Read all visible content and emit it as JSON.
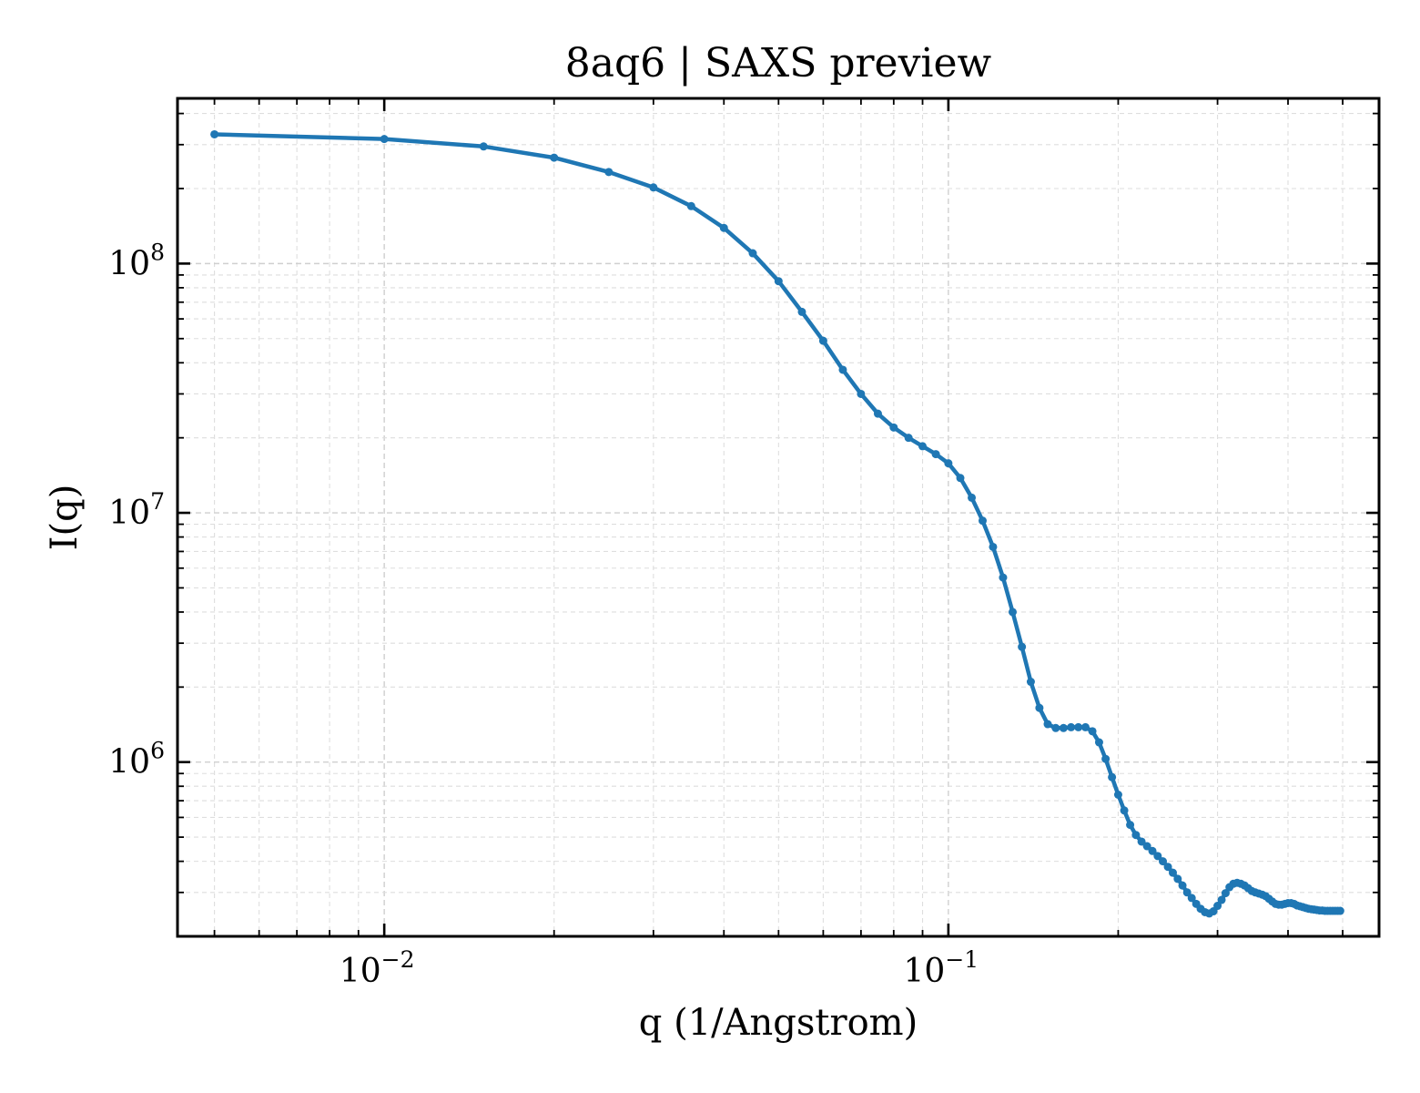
{
  "chart_data": {
    "type": "line",
    "title": "8aq6 | SAXS preview",
    "xlabel": "q (1/Angstrom)",
    "ylabel": "I(q)",
    "xscale": "log",
    "yscale": "log",
    "xlim": [
      0.0043,
      0.58
    ],
    "ylim": [
      200000,
      460000000
    ],
    "grid": true,
    "legend": "none",
    "colors": {
      "series": "#1f77b4",
      "grid": "#cfcfcf",
      "frame": "#000000"
    },
    "x_ticks": [
      {
        "value": 0.01,
        "base": "10",
        "exp": "−2"
      },
      {
        "value": 0.1,
        "base": "10",
        "exp": "−1"
      }
    ],
    "y_ticks": [
      {
        "value": 1000000,
        "base": "10",
        "exp": "6"
      },
      {
        "value": 10000000,
        "base": "10",
        "exp": "7"
      },
      {
        "value": 100000000,
        "base": "10",
        "exp": "8"
      }
    ],
    "series": [
      {
        "marker": "circle",
        "x": [
          0.005,
          0.01,
          0.015,
          0.02,
          0.025,
          0.03,
          0.035,
          0.04,
          0.045,
          0.05,
          0.055,
          0.06,
          0.065,
          0.07,
          0.075,
          0.08,
          0.085,
          0.09,
          0.095,
          0.1,
          0.105,
          0.11,
          0.115,
          0.12,
          0.125,
          0.13,
          0.135,
          0.14,
          0.145,
          0.15,
          0.155,
          0.16,
          0.165,
          0.17,
          0.175,
          0.18,
          0.185,
          0.19,
          0.195,
          0.2,
          0.205,
          0.21,
          0.215,
          0.22,
          0.225,
          0.23,
          0.235,
          0.24,
          0.245,
          0.25,
          0.255,
          0.26,
          0.265,
          0.27,
          0.275,
          0.28,
          0.285,
          0.29,
          0.295,
          0.3,
          0.305,
          0.31,
          0.315,
          0.32,
          0.325,
          0.33,
          0.335,
          0.34,
          0.345,
          0.35,
          0.355,
          0.36,
          0.365,
          0.37,
          0.375,
          0.38,
          0.385,
          0.39,
          0.395,
          0.4,
          0.405,
          0.41,
          0.415,
          0.42,
          0.425,
          0.43,
          0.435,
          0.44,
          0.445,
          0.45,
          0.455,
          0.46,
          0.465,
          0.47,
          0.475,
          0.48,
          0.485,
          0.49,
          0.495
        ],
        "y": [
          330000000,
          316000000,
          295000000,
          266000000,
          233000000,
          202000000,
          170000000,
          139000000,
          110000000,
          85000000,
          64000000,
          49000000,
          37500000,
          30000000,
          25000000,
          22000000,
          20000000,
          18500000,
          17200000,
          15800000,
          13800000,
          11500000,
          9300000,
          7300000,
          5500000,
          4000000,
          2900000,
          2100000,
          1650000,
          1420000,
          1370000,
          1370000,
          1380000,
          1380000,
          1380000,
          1330000,
          1200000,
          1030000,
          870000,
          740000,
          640000,
          560000,
          510000,
          480000,
          460000,
          440000,
          420000,
          400000,
          380000,
          360000,
          340000,
          320000,
          300000,
          285000,
          270000,
          258000,
          250000,
          247000,
          252000,
          265000,
          280000,
          298000,
          315000,
          325000,
          328000,
          325000,
          320000,
          312000,
          304000,
          300000,
          297000,
          294000,
          290000,
          283000,
          276000,
          270000,
          268000,
          268000,
          270000,
          272000,
          272000,
          270000,
          266000,
          264000,
          262000,
          260000,
          258000,
          257000,
          256000,
          255000,
          254000,
          254000,
          253000,
          253000,
          253000,
          253000,
          253000,
          253000,
          253000
        ]
      }
    ]
  }
}
